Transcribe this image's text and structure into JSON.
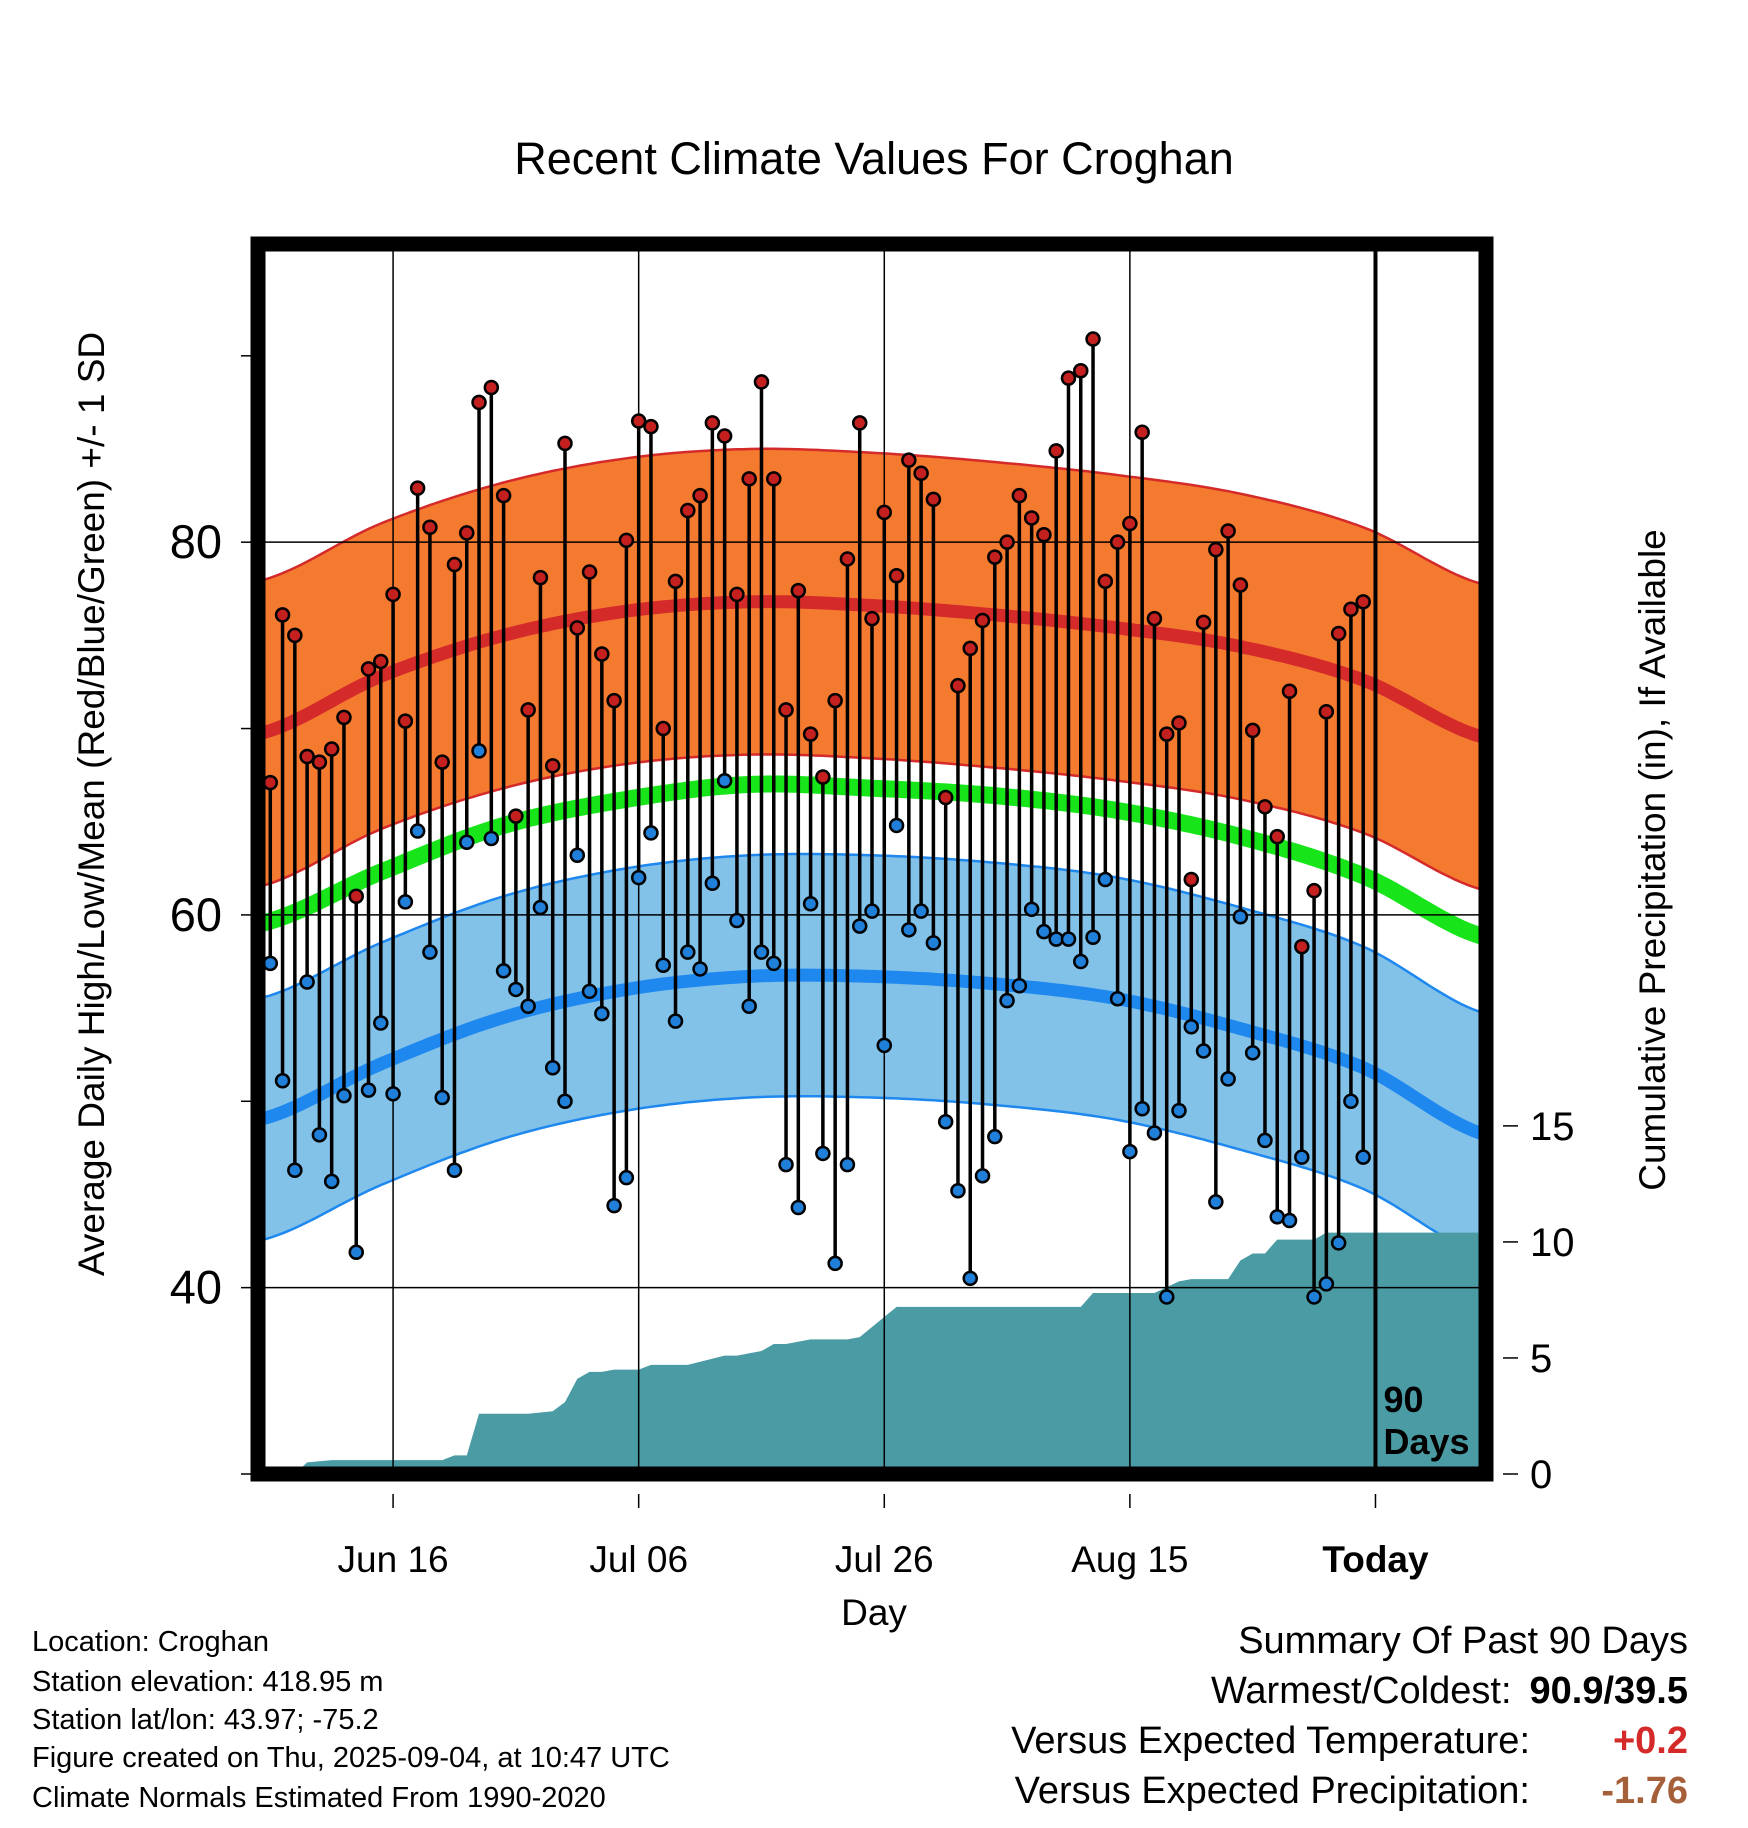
{
  "chart_data": {
    "type": "line",
    "title": "Recent Climate Values For Croghan",
    "xlabel": "Day",
    "ylabel_left": "Average Daily High/Low/Mean (Red/Blue/Green) +/- 1 SD",
    "ylabel_right": "Cumulative Precipitation (in), If Available",
    "x_tick_labels": [
      "Jun 16",
      "Jul 06",
      "Jul 26",
      "Aug 15",
      "Today"
    ],
    "x_tick_days": [
      10,
      30,
      50,
      70,
      90
    ],
    "x_range": [
      -1,
      99
    ],
    "y_left_range": [
      30,
      96
    ],
    "y_left_ticks": [
      40,
      60,
      80
    ],
    "y_left_minor_ticks": [
      30,
      50,
      70,
      90
    ],
    "y_right_range": [
      0,
      53
    ],
    "y_right_ticks": [
      0,
      5,
      10,
      15
    ],
    "today_marker_label": [
      "90",
      "Days"
    ],
    "normal_high": {
      "day": [
        -1,
        9,
        19,
        29,
        39,
        49,
        59,
        69,
        79,
        89,
        99
      ],
      "mean": [
        69.7,
        72.8,
        75.0,
        76.3,
        76.8,
        76.6,
        76.1,
        75.4,
        74.4,
        72.6,
        69.5
      ],
      "sd": 8.2
    },
    "normal_low": {
      "day": [
        -1,
        9,
        19,
        29,
        39,
        49,
        59,
        69,
        79,
        89,
        99
      ],
      "mean": [
        49.0,
        52.0,
        54.5,
        56.0,
        56.7,
        56.7,
        56.3,
        55.5,
        53.9,
        51.8,
        48.2
      ],
      "sd": 6.5
    },
    "normal_mean": {
      "day": [
        -1,
        9,
        19,
        29,
        39,
        49,
        59,
        69,
        79,
        89,
        99
      ],
      "values": [
        59.5,
        62.3,
        64.8,
        66.2,
        67.0,
        66.8,
        66.4,
        65.6,
        64.2,
        62.1,
        58.8
      ]
    },
    "series": [
      {
        "name": "High",
        "values": [
          67.1,
          76.1,
          75.0,
          68.5,
          68.2,
          68.9,
          70.6,
          61.0,
          73.2,
          73.6,
          77.2,
          70.4,
          82.9,
          80.8,
          68.2,
          78.8,
          80.5,
          87.5,
          88.3,
          82.5,
          65.3,
          71.0,
          78.1,
          68.0,
          85.3,
          75.4,
          78.4,
          74.0,
          71.5,
          80.1,
          86.5,
          86.2,
          70.0,
          77.9,
          81.7,
          82.5,
          86.4,
          85.7,
          77.2,
          83.4,
          88.6,
          83.4,
          71.0,
          77.4,
          69.7,
          67.4,
          71.5,
          79.1,
          86.4,
          75.9,
          81.6,
          78.2,
          84.4,
          83.7,
          82.3,
          66.3,
          72.3,
          74.3,
          75.8,
          79.2,
          80.0,
          82.5,
          81.3,
          80.4,
          84.9,
          88.8,
          89.2,
          90.9,
          77.9,
          80.0,
          81.0,
          85.9,
          75.9,
          69.7,
          70.3,
          61.9,
          75.7,
          79.6,
          80.6,
          77.7,
          69.9,
          65.8,
          64.2,
          72.0,
          58.3,
          61.3,
          70.9,
          75.1,
          76.4,
          76.8
        ]
      },
      {
        "name": "Low",
        "values": [
          57.4,
          51.1,
          46.3,
          56.4,
          48.2,
          45.7,
          50.3,
          41.9,
          50.6,
          54.2,
          50.4,
          60.7,
          64.5,
          58.0,
          50.2,
          46.3,
          63.9,
          68.8,
          64.1,
          57.0,
          56.0,
          55.1,
          60.4,
          51.8,
          50.0,
          63.2,
          55.9,
          54.7,
          44.4,
          45.9,
          62.0,
          64.4,
          57.3,
          54.3,
          58.0,
          57.1,
          61.7,
          67.2,
          59.7,
          55.1,
          58.0,
          57.4,
          46.6,
          44.3,
          60.6,
          47.2,
          41.3,
          46.6,
          59.4,
          60.2,
          53.0,
          64.8,
          59.2,
          60.2,
          58.5,
          48.9,
          45.2,
          40.5,
          46.0,
          48.1,
          55.4,
          56.2,
          60.3,
          59.1,
          58.7,
          58.7,
          57.5,
          58.8,
          61.9,
          55.5,
          47.3,
          49.6,
          48.3,
          39.5,
          49.5,
          54.0,
          52.7,
          44.6,
          51.2,
          59.9,
          52.6,
          47.9,
          43.8,
          43.6,
          47.0,
          39.5,
          40.2,
          42.4,
          50.0,
          47.0
        ]
      },
      {
        "name": "Cumulative Precipitation",
        "day": [
          0,
          2,
          3,
          5,
          8,
          11,
          14,
          15,
          16,
          17,
          21,
          23,
          24,
          25,
          26,
          27,
          28,
          29,
          30,
          31,
          32,
          34,
          37,
          38,
          40,
          41,
          42,
          44,
          45,
          47,
          48,
          51,
          53,
          57,
          60,
          61,
          66,
          67,
          72,
          74,
          75,
          76,
          77,
          78,
          79,
          80,
          81,
          82,
          85,
          86,
          99
        ],
        "values": [
          0.0,
          0.0,
          0.5,
          0.6,
          0.6,
          0.6,
          0.6,
          0.8,
          0.8,
          2.6,
          2.6,
          2.7,
          3.1,
          4.1,
          4.4,
          4.4,
          4.5,
          4.5,
          4.5,
          4.7,
          4.7,
          4.7,
          5.1,
          5.1,
          5.3,
          5.6,
          5.6,
          5.8,
          5.8,
          5.8,
          5.9,
          7.2,
          7.2,
          7.2,
          7.2,
          7.2,
          7.2,
          7.8,
          7.8,
          8.3,
          8.4,
          8.4,
          8.4,
          8.4,
          9.2,
          9.5,
          9.5,
          10.1,
          10.1,
          10.4,
          10.4
        ]
      }
    ]
  },
  "location_info": {
    "location": "Location: Croghan",
    "elevation": "Station elevation: 418.95 m",
    "latlon": "Station lat/lon: 43.97; -75.2",
    "created": "Figure created on Thu, 2025-09-04, at 10:47 UTC",
    "normals": "Climate Normals Estimated From 1990-2020"
  },
  "summary": {
    "title": "Summary Of Past 90 Days",
    "warmest_coldest_label": "Warmest/Coldest:",
    "warmest_coldest_value": "90.9/39.5",
    "temp_label": "Versus Expected Temperature:",
    "temp_value": "+0.2",
    "precip_label": "Versus Expected Precipitation:",
    "precip_value": "-1.76"
  },
  "colors": {
    "high_band": "#f47a30",
    "high_line": "#d42a2a",
    "low_band": "#82c1e8",
    "low_line": "#1e88ef",
    "mean_line": "#17e51a",
    "precip_fill": "#4a9ba4",
    "high_marker": "#c42020",
    "low_marker": "#1f7fd9",
    "temp_anomaly": "#d42a2a",
    "precip_anomaly": "#a5603a"
  }
}
